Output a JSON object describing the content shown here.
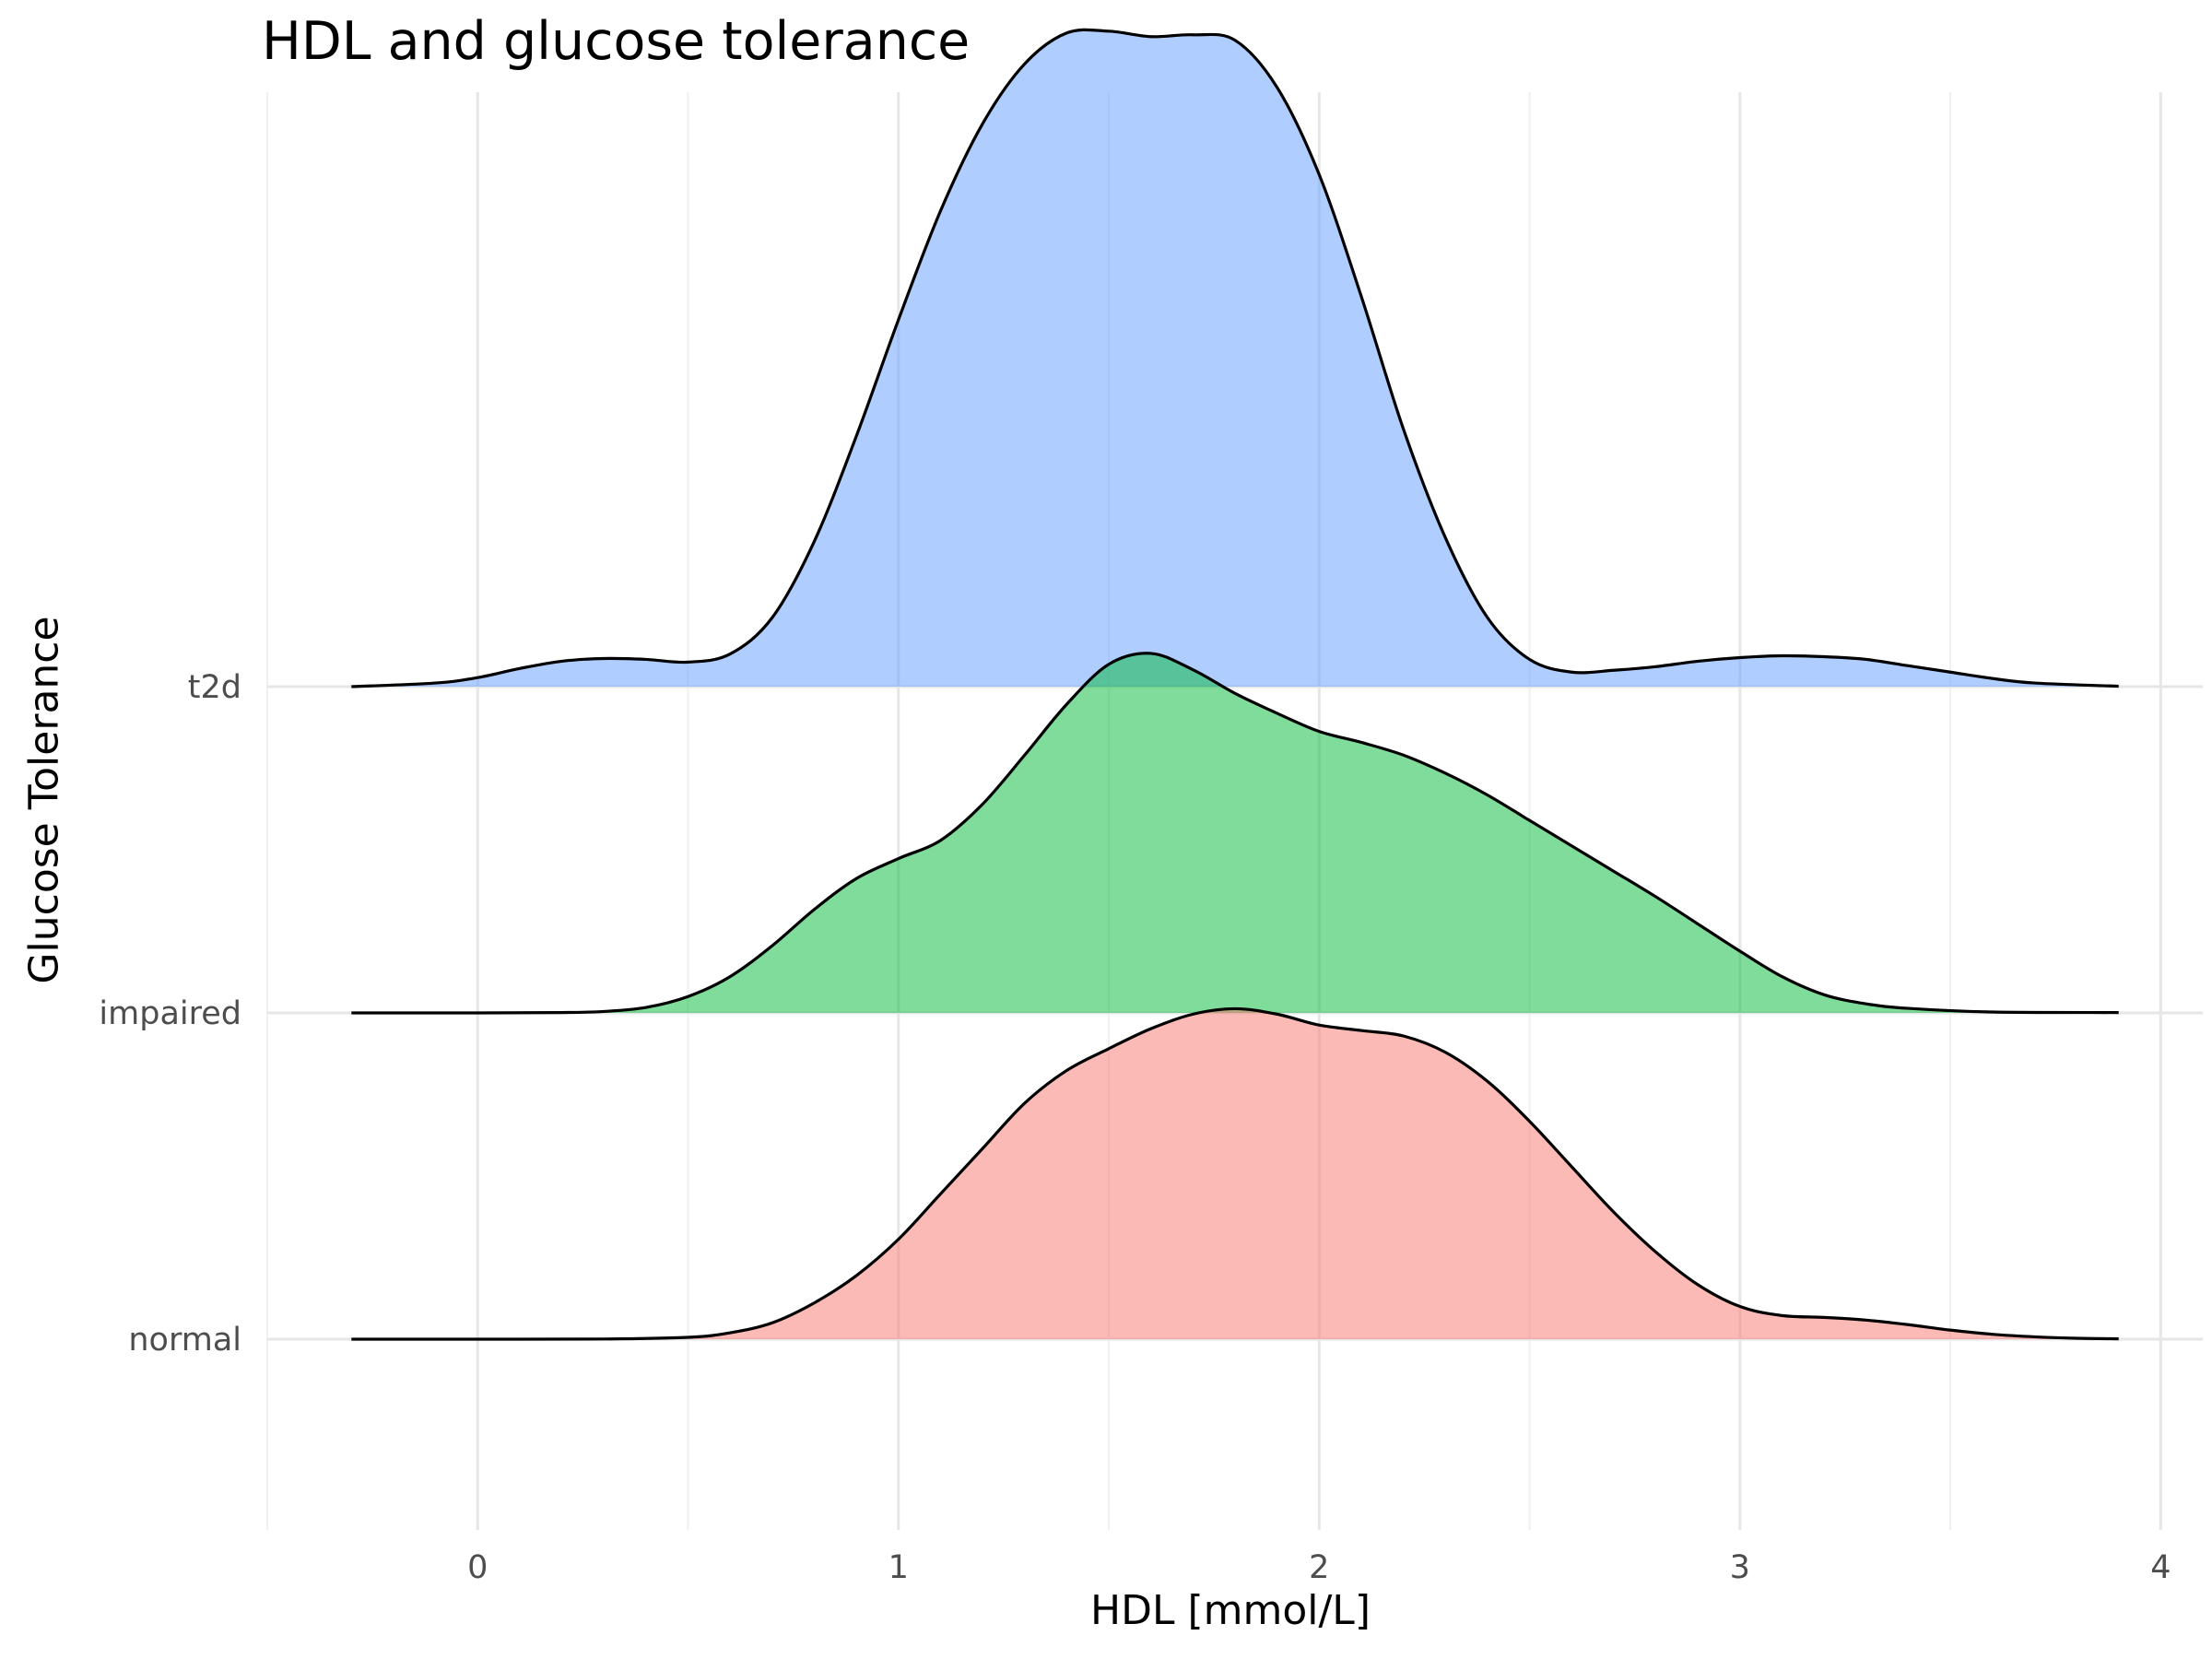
{
  "chart_data": {
    "type": "area",
    "subtype": "ridgeline",
    "title": "HDL and glucose tolerance",
    "xlabel": "HDL [mmol/L]",
    "ylabel": "Glucose Tolerance",
    "xlim": [
      -0.5,
      4.1
    ],
    "x_ticks": [
      "0",
      "1",
      "2",
      "3",
      "4"
    ],
    "grid": true,
    "categories": [
      "normal",
      "impaired",
      "t2d"
    ],
    "series": [
      {
        "name": "normal",
        "color": "#F8766D",
        "x": [
          -0.3,
          0.0,
          0.3,
          0.5,
          0.6,
          0.7,
          0.8,
          0.9,
          1.0,
          1.1,
          1.2,
          1.3,
          1.4,
          1.5,
          1.6,
          1.7,
          1.8,
          1.9,
          2.0,
          2.1,
          2.2,
          2.3,
          2.4,
          2.5,
          2.6,
          2.7,
          2.8,
          2.9,
          3.0,
          3.1,
          3.2,
          3.3,
          3.4,
          3.5,
          3.6,
          3.7,
          3.8,
          3.9
        ],
        "density": [
          0,
          0,
          0.001,
          0.01,
          0.035,
          0.09,
          0.2,
          0.35,
          0.55,
          0.8,
          1.05,
          1.3,
          1.48,
          1.6,
          1.71,
          1.79,
          1.82,
          1.79,
          1.73,
          1.7,
          1.67,
          1.58,
          1.42,
          1.2,
          0.95,
          0.7,
          0.48,
          0.3,
          0.18,
          0.13,
          0.12,
          0.105,
          0.08,
          0.05,
          0.027,
          0.013,
          0.005,
          0.002
        ]
      },
      {
        "name": "impaired",
        "color": "#00BA38",
        "x": [
          -0.3,
          0.0,
          0.2,
          0.3,
          0.4,
          0.5,
          0.6,
          0.7,
          0.8,
          0.9,
          1.0,
          1.1,
          1.2,
          1.3,
          1.4,
          1.5,
          1.6,
          1.7,
          1.8,
          1.9,
          2.0,
          2.1,
          2.2,
          2.3,
          2.4,
          2.5,
          2.6,
          2.7,
          2.8,
          2.9,
          3.0,
          3.1,
          3.2,
          3.3,
          3.4,
          3.6,
          3.9
        ],
        "density": [
          0,
          0,
          0.002,
          0.008,
          0.03,
          0.09,
          0.2,
          0.37,
          0.57,
          0.74,
          0.85,
          0.95,
          1.15,
          1.42,
          1.7,
          1.92,
          1.98,
          1.89,
          1.76,
          1.65,
          1.55,
          1.49,
          1.42,
          1.32,
          1.2,
          1.06,
          0.92,
          0.78,
          0.64,
          0.49,
          0.34,
          0.2,
          0.1,
          0.05,
          0.025,
          0.005,
          0.002
        ]
      },
      {
        "name": "t2d",
        "color": "#619CFF",
        "x": [
          -0.3,
          -0.1,
          0.0,
          0.1,
          0.2,
          0.3,
          0.4,
          0.5,
          0.6,
          0.7,
          0.8,
          0.9,
          1.0,
          1.1,
          1.2,
          1.3,
          1.4,
          1.5,
          1.6,
          1.7,
          1.8,
          1.9,
          2.0,
          2.1,
          2.2,
          2.3,
          2.4,
          2.5,
          2.6,
          2.7,
          2.8,
          2.9,
          3.0,
          3.1,
          3.2,
          3.3,
          3.4,
          3.5,
          3.6,
          3.7,
          3.9
        ],
        "density": [
          0,
          0.02,
          0.05,
          0.1,
          0.14,
          0.155,
          0.15,
          0.135,
          0.18,
          0.38,
          0.8,
          1.38,
          2.02,
          2.62,
          3.1,
          3.43,
          3.6,
          3.61,
          3.58,
          3.59,
          3.56,
          3.3,
          2.82,
          2.15,
          1.42,
          0.82,
          0.38,
          0.15,
          0.08,
          0.09,
          0.11,
          0.14,
          0.16,
          0.17,
          0.165,
          0.15,
          0.115,
          0.08,
          0.045,
          0.02,
          0.002
        ]
      }
    ]
  }
}
